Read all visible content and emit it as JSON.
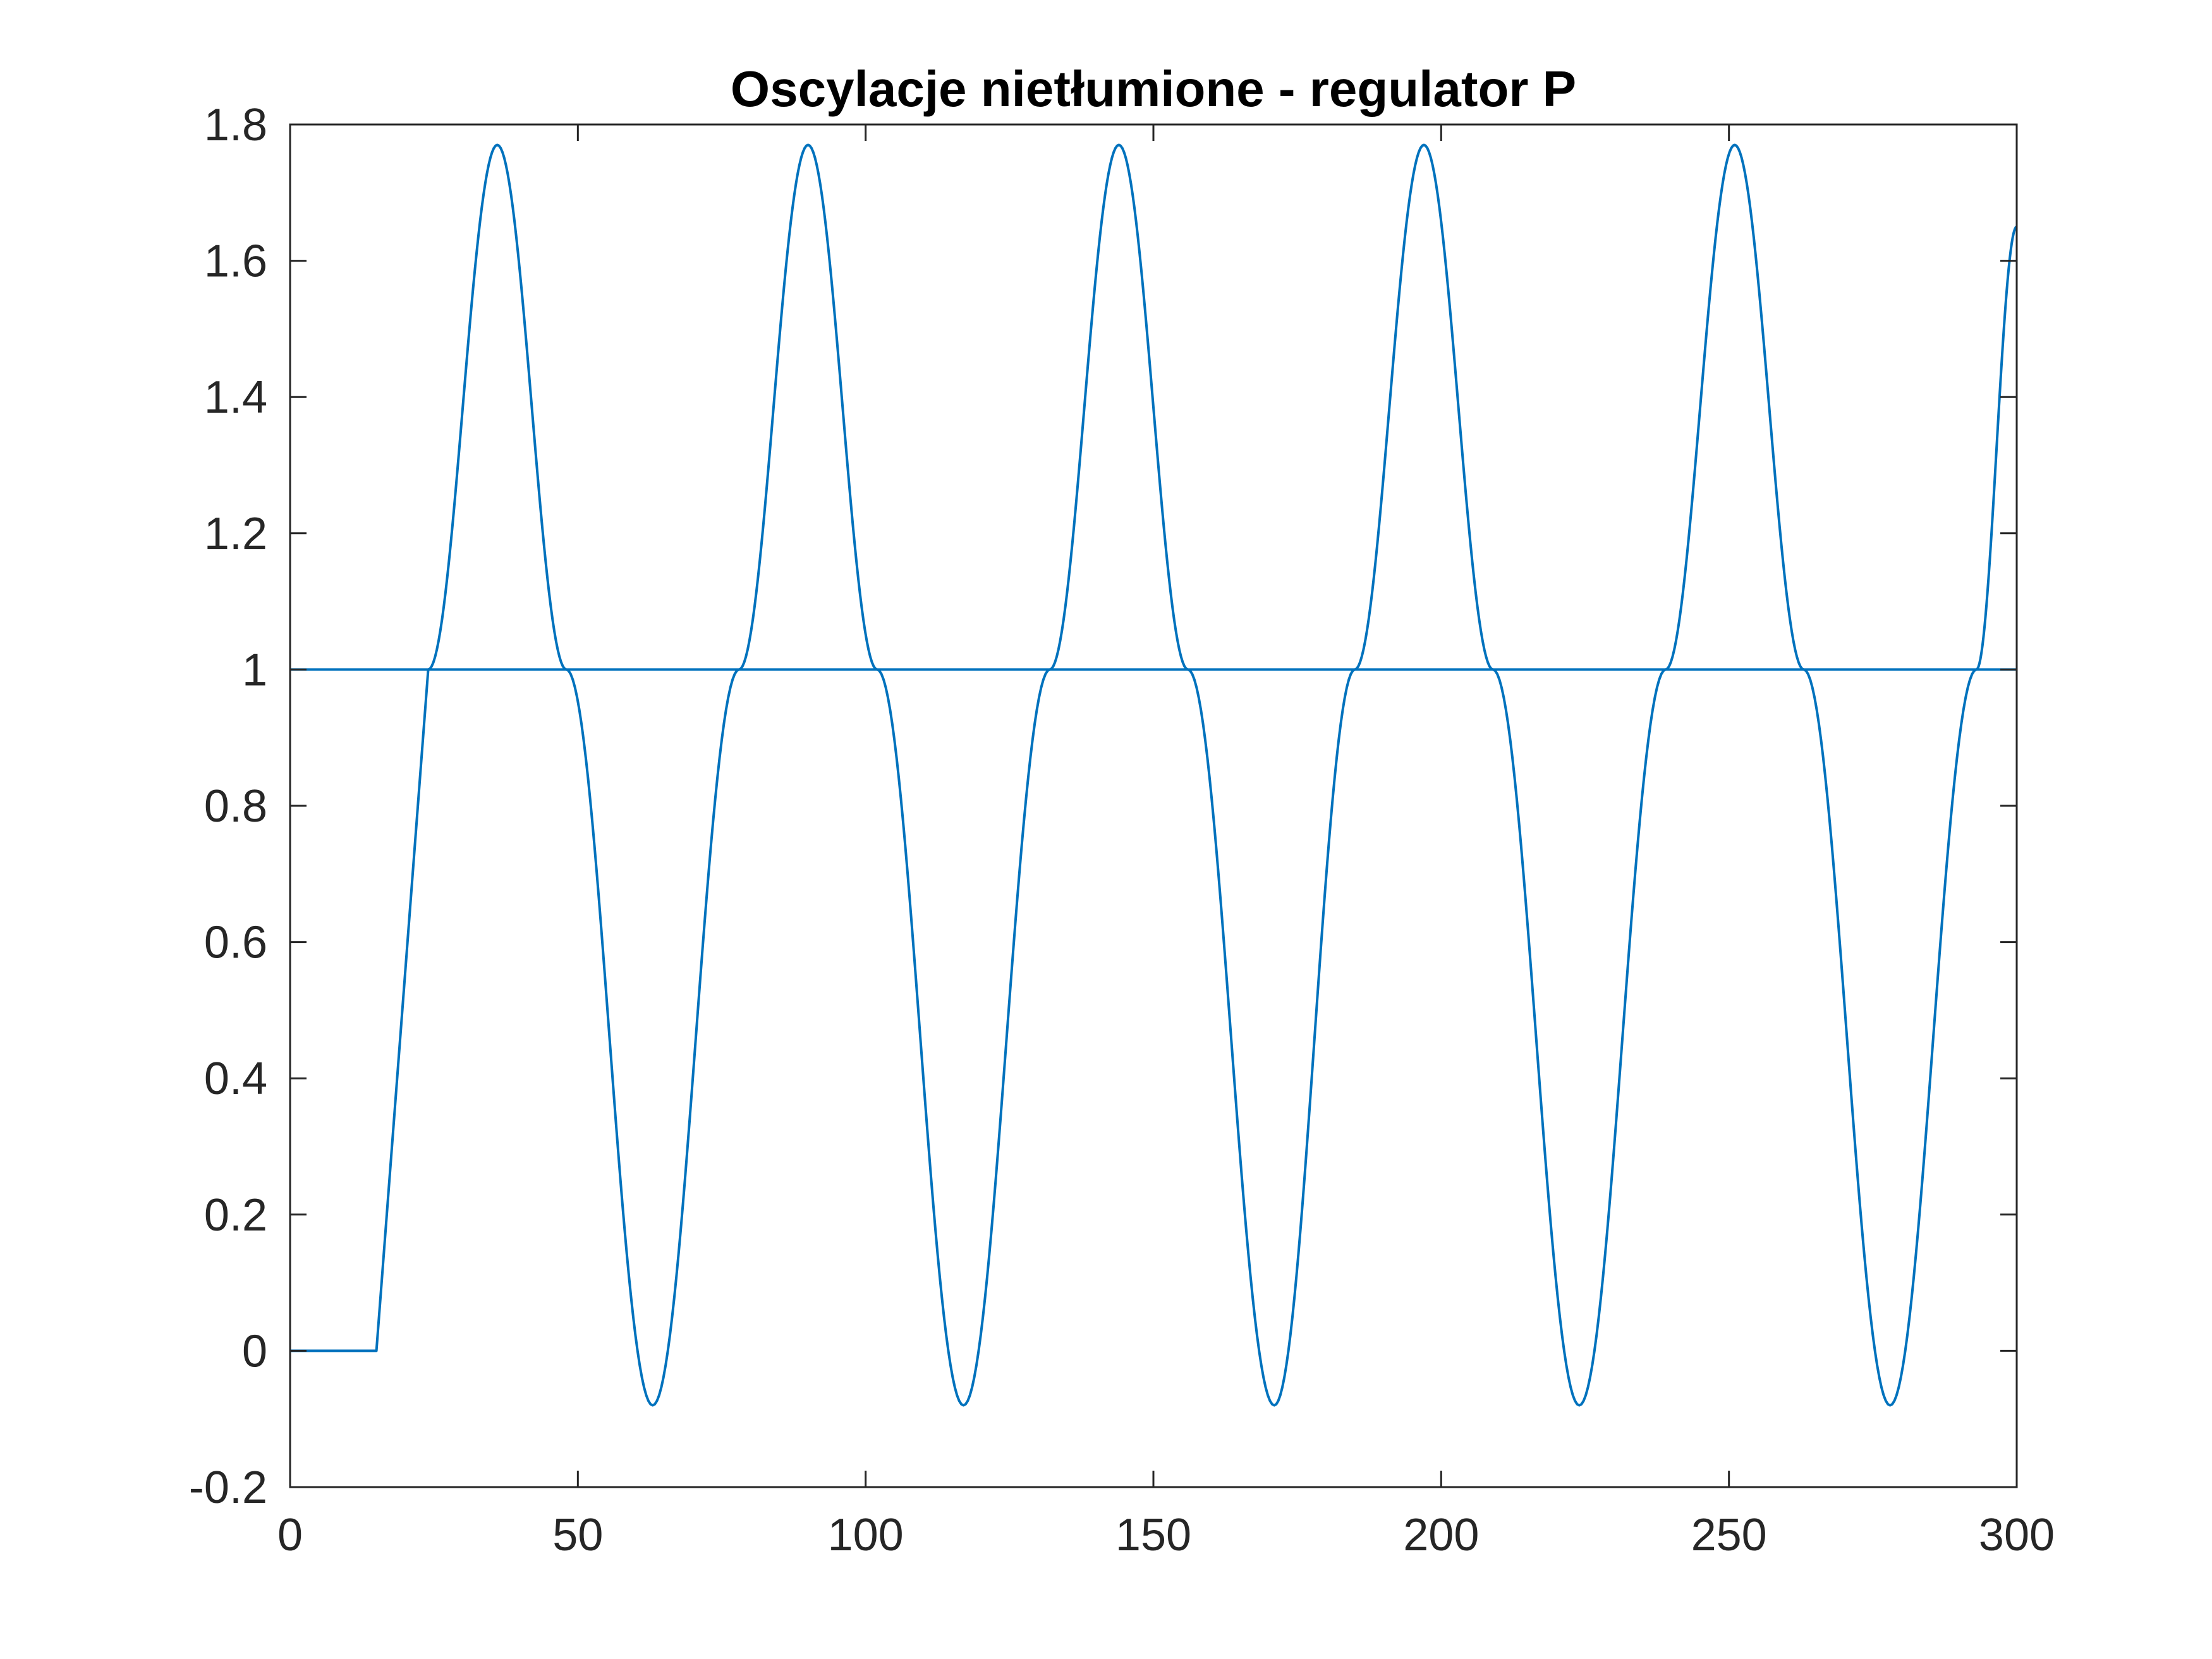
{
  "chart_data": {
    "type": "line",
    "title": "Oscylacje nietłumione - regulator P",
    "xlabel": "",
    "ylabel": "",
    "xlim": [
      0,
      300
    ],
    "ylim": [
      -0.2,
      1.8
    ],
    "grid": false,
    "xticks": [
      0,
      50,
      100,
      150,
      200,
      250,
      300
    ],
    "xtick_labels": [
      "0",
      "50",
      "100",
      "150",
      "200",
      "250",
      "300"
    ],
    "yticks": [
      -0.2,
      0,
      0.2,
      0.4,
      0.6,
      0.8,
      1,
      1.2,
      1.4,
      1.6,
      1.8
    ],
    "ytick_labels": [
      "-0.2",
      "0",
      "0.2",
      "0.4",
      "0.6",
      "0.8",
      "1",
      "1.2",
      "1.4",
      "1.6",
      "1.8"
    ],
    "series": [
      {
        "color": "#0072BD",
        "x": [
          0,
          15,
          24,
          36,
          48,
          63,
          78,
          90,
          102,
          117,
          132,
          144,
          156,
          171,
          185,
          197,
          209,
          224,
          239,
          251,
          263,
          278,
          293,
          300
        ],
        "y": [
          0,
          0,
          1.0,
          1.77,
          1.0,
          -0.08,
          1.0,
          1.77,
          1.0,
          -0.08,
          1.0,
          1.77,
          1.0,
          -0.08,
          1.0,
          1.77,
          1.0,
          -0.08,
          1.0,
          1.77,
          1.0,
          -0.08,
          1.0,
          1.65
        ]
      },
      {
        "color": "#0072BD",
        "x": [
          0,
          300
        ],
        "y": [
          1,
          1
        ]
      }
    ]
  }
}
